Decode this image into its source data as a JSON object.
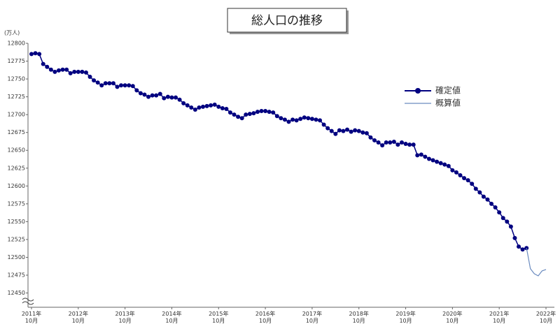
{
  "chart_data": {
    "type": "line",
    "title": "総人口の推移",
    "y_label": "(万人)",
    "categories": [
      "2011年 10月",
      null,
      null,
      null,
      null,
      null,
      null,
      null,
      null,
      null,
      null,
      null,
      "2012年 10月",
      null,
      null,
      null,
      null,
      null,
      null,
      null,
      null,
      null,
      null,
      null,
      "2013年 10月",
      null,
      null,
      null,
      null,
      null,
      null,
      null,
      null,
      null,
      null,
      null,
      "2014年 10月",
      null,
      null,
      null,
      null,
      null,
      null,
      null,
      null,
      null,
      null,
      null,
      "2015年 10月",
      null,
      null,
      null,
      null,
      null,
      null,
      null,
      null,
      null,
      null,
      null,
      "2016年 10月",
      null,
      null,
      null,
      null,
      null,
      null,
      null,
      null,
      null,
      null,
      null,
      "2017年 10月",
      null,
      null,
      null,
      null,
      null,
      null,
      null,
      null,
      null,
      null,
      null,
      "2018年 10月",
      null,
      null,
      null,
      null,
      null,
      null,
      null,
      null,
      null,
      null,
      null,
      "2019年 10月",
      null,
      null,
      null,
      null,
      null,
      null,
      null,
      null,
      null,
      null,
      null,
      "2020年 10月",
      null,
      null,
      null,
      null,
      null,
      null,
      null,
      null,
      null,
      null,
      null,
      "2021年 10月",
      null,
      null,
      null,
      null,
      null,
      null,
      null,
      null,
      null,
      null,
      null,
      "2022年 10月"
    ],
    "series": [
      {
        "name": "確定値",
        "color": "#000080",
        "marker": true,
        "values": [
          12785,
          12786,
          12785,
          12771,
          12767,
          12763,
          12760,
          12762,
          12763,
          12763,
          12758,
          12760,
          12760,
          12760,
          12759,
          12753,
          12748,
          12745,
          12741,
          12744,
          12744,
          12744,
          12739,
          12741,
          12741,
          12741,
          12740,
          12734,
          12730,
          12728,
          12725,
          12727,
          12727,
          12729,
          12723,
          12725,
          12724,
          12724,
          12721,
          12716,
          12713,
          12710,
          12707,
          12710,
          12711,
          12712,
          12713,
          12714,
          12711,
          12709,
          12708,
          12703,
          12700,
          12697,
          12695,
          12700,
          12701,
          12702,
          12704,
          12705,
          12705,
          12704,
          12703,
          12698,
          12695,
          12693,
          12690,
          12693,
          12692,
          12694,
          12696,
          12695,
          12694,
          12693,
          12692,
          12686,
          12681,
          12677,
          12673,
          12678,
          12677,
          12679,
          12676,
          12678,
          12677,
          12675,
          12674,
          12668,
          12664,
          12661,
          12657,
          12661,
          12661,
          12662,
          12658,
          12661,
          12659,
          12658,
          12658,
          12643,
          12644,
          12641,
          12638,
          12636,
          12634,
          12632,
          12630,
          12628,
          12622,
          12619,
          12615,
          12611,
          12608,
          12603,
          12596,
          12591,
          12585,
          12581,
          12575,
          12570,
          12563,
          12555,
          12550,
          12543,
          12527,
          12515,
          12511,
          12513,
          null,
          null,
          null,
          null,
          null
        ]
      },
      {
        "name": "概算値",
        "color": "#6a8bbf",
        "marker": false,
        "values": [
          null,
          null,
          null,
          null,
          null,
          null,
          null,
          null,
          null,
          null,
          null,
          null,
          null,
          null,
          null,
          null,
          null,
          null,
          null,
          null,
          null,
          null,
          null,
          null,
          null,
          null,
          null,
          null,
          null,
          null,
          null,
          null,
          null,
          null,
          null,
          null,
          null,
          null,
          null,
          null,
          null,
          null,
          null,
          null,
          null,
          null,
          null,
          null,
          null,
          null,
          null,
          null,
          null,
          null,
          null,
          null,
          null,
          null,
          null,
          null,
          null,
          null,
          null,
          null,
          null,
          null,
          null,
          null,
          null,
          null,
          null,
          null,
          null,
          null,
          null,
          null,
          null,
          null,
          null,
          null,
          null,
          null,
          null,
          null,
          null,
          null,
          null,
          null,
          null,
          null,
          null,
          null,
          null,
          null,
          null,
          null,
          null,
          null,
          null,
          null,
          null,
          null,
          null,
          null,
          null,
          null,
          null,
          null,
          null,
          null,
          null,
          null,
          null,
          null,
          null,
          null,
          null,
          null,
          null,
          null,
          null,
          null,
          null,
          null,
          null,
          null,
          null,
          12513,
          12484,
          12477,
          12474,
          12481,
          12483
        ]
      }
    ],
    "ylim": [
      12430,
      12800
    ],
    "yticks": [
      12800,
      12775,
      12750,
      12725,
      12700,
      12675,
      12650,
      12625,
      12600,
      12575,
      12550,
      12525,
      12500,
      12475,
      12450
    ],
    "grid": false,
    "legend": "upper right"
  }
}
